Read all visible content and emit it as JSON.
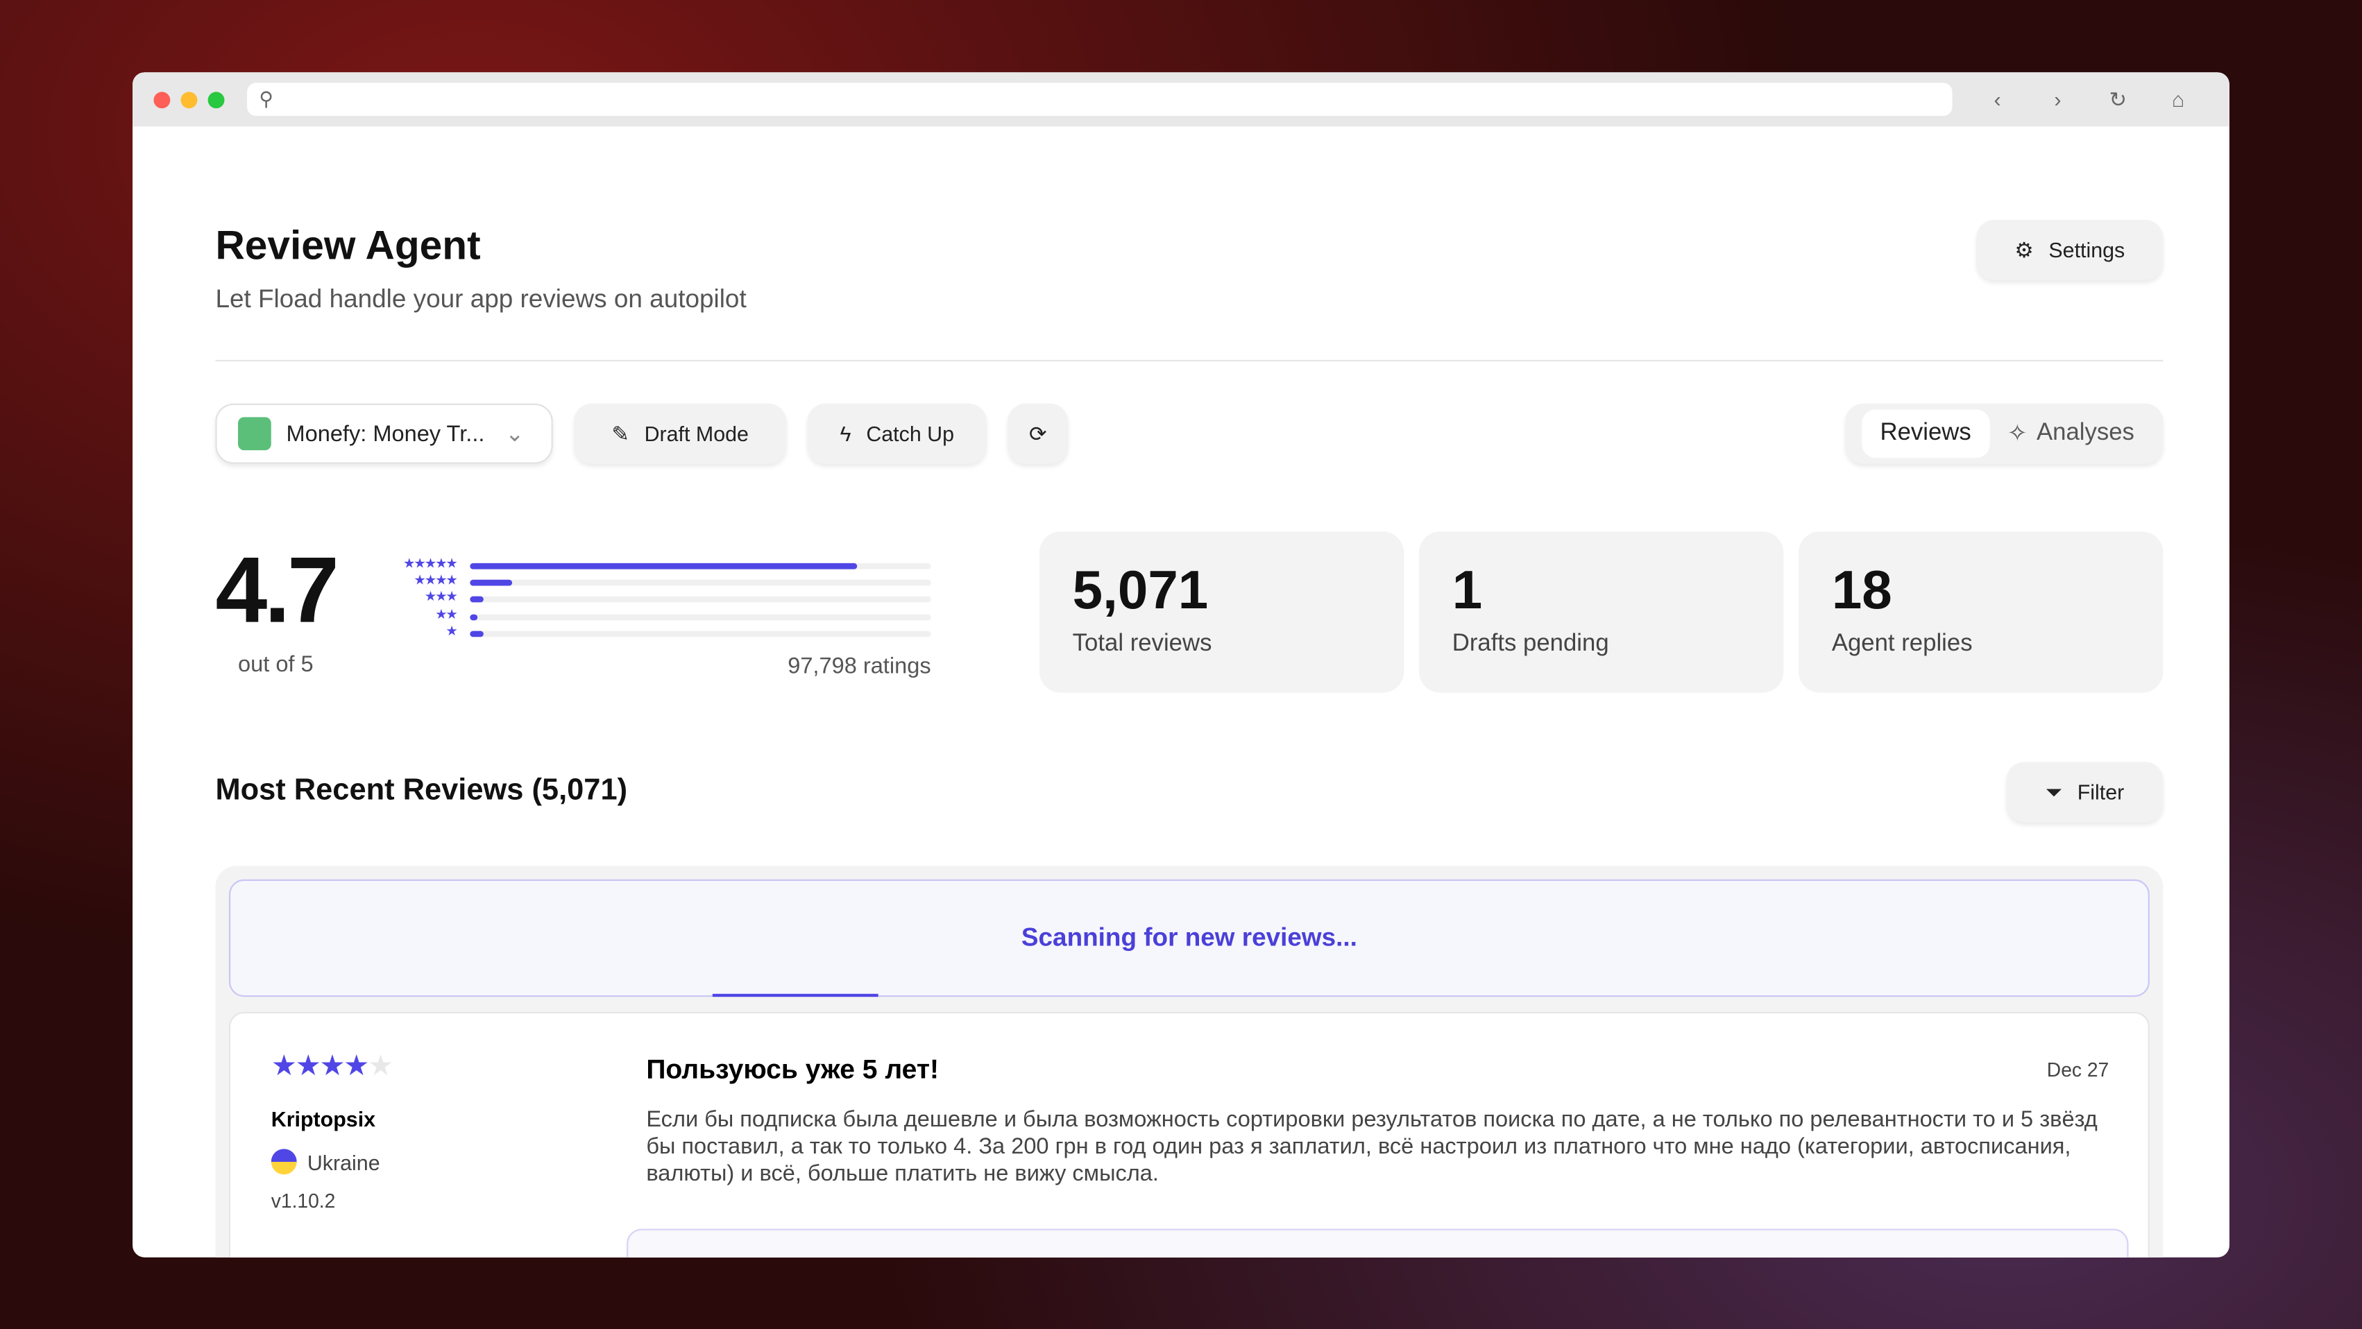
{
  "browser": {
    "url": ""
  },
  "header": {
    "title": "Review Agent",
    "subtitle": "Let Fload handle your app reviews on autopilot",
    "settings_label": "Settings"
  },
  "toolbar": {
    "app_select": "Monefy: Money Tr...",
    "draft_mode": "Draft Mode",
    "catch_up": "Catch Up",
    "tabs": [
      {
        "label": "Reviews",
        "active": true
      },
      {
        "label": "Analyses",
        "active": false
      }
    ]
  },
  "rating": {
    "average": "4.7",
    "out_of": "out of 5",
    "total": "97,798 ratings",
    "distribution": [
      {
        "stars": "★★★★★",
        "fraction": 0.84
      },
      {
        "stars": "★★★★",
        "fraction": 0.09
      },
      {
        "stars": "★★★",
        "fraction": 0.03
      },
      {
        "stars": "★★",
        "fraction": 0.01
      },
      {
        "stars": "★",
        "fraction": 0.03
      }
    ]
  },
  "stats": [
    {
      "value": "5,071",
      "label": "Total reviews"
    },
    {
      "value": "1",
      "label": "Drafts pending"
    },
    {
      "value": "18",
      "label": "Agent replies"
    }
  ],
  "reviews_section": {
    "title": "Most Recent Reviews (5,071)",
    "filter_label": "Filter",
    "scanning": "Scanning for new reviews..."
  },
  "reviews": [
    {
      "rating": 4,
      "author": "Kriptopsix",
      "country": "Ukraine",
      "version": "v1.10.2",
      "title": "Пользуюсь уже 5 лет!",
      "date": "Dec 27",
      "body": "Если бы подписка была дешевле и была возможность сортировки результатов поиска по дате, а не только по релевантности то и 5 звёзд бы поставил, а так то только 4. За 200 грн в год один раз я заплатил, всё настроил из платного что мне надо (категории, автосписания, валюты) и всё, больше платить не вижу смысла."
    }
  ],
  "colors": {
    "accent": "#5046e5"
  }
}
